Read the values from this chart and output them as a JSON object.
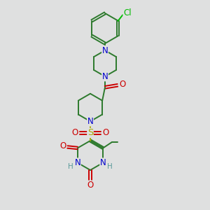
{
  "bg_color": "#dfe0e0",
  "bond_color": "#2d7a2d",
  "N_color": "#0000cc",
  "O_color": "#cc0000",
  "S_color": "#aaaa00",
  "Cl_color": "#00bb00",
  "H_color": "#5a9a9a",
  "bond_lw": 1.4,
  "font_size": 8.5,
  "figsize": [
    3.0,
    3.0
  ],
  "dpi": 100,
  "xlim": [
    2.5,
    8.5
  ],
  "ylim": [
    0.5,
    10.5
  ]
}
